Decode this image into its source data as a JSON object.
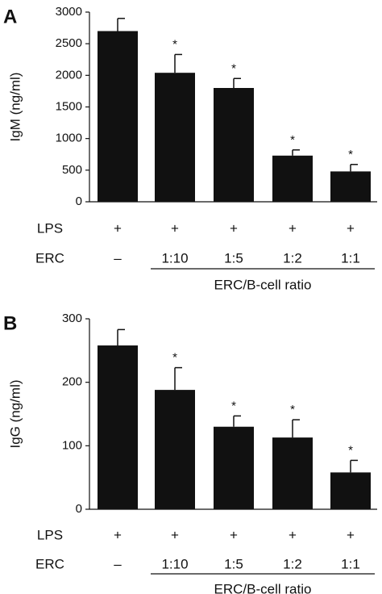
{
  "chart_data": [
    {
      "type": "bar",
      "panel_label": "A",
      "ylabel": "IgM (ng/ml)",
      "ylim": [
        0,
        3000
      ],
      "yticks": [
        "0",
        "500",
        "1000",
        "1500",
        "2000",
        "2500",
        "3000"
      ],
      "ytick_values": [
        0,
        500,
        1000,
        1500,
        2000,
        2500,
        3000
      ],
      "values": [
        2700,
        2040,
        1800,
        730,
        480
      ],
      "errors": [
        200,
        290,
        150,
        90,
        110
      ],
      "significance": [
        "",
        "*",
        "*",
        "*",
        "*"
      ],
      "color": "#111111",
      "rows": [
        {
          "label": "LPS",
          "values": [
            "+",
            "+",
            "+",
            "+",
            "+"
          ]
        },
        {
          "label": "ERC",
          "values": [
            "–",
            "1:10",
            "1:5",
            "1:2",
            "1:1"
          ]
        }
      ],
      "bracket_label": "ERC/B-cell ratio"
    },
    {
      "type": "bar",
      "panel_label": "B",
      "ylabel": "IgG (ng/ml)",
      "ylim": [
        0,
        300
      ],
      "yticks": [
        "0",
        "100",
        "200",
        "300"
      ],
      "ytick_values": [
        0,
        100,
        200,
        300
      ],
      "values": [
        258,
        188,
        130,
        113,
        58
      ],
      "errors": [
        25,
        35,
        17,
        28,
        19
      ],
      "significance": [
        "",
        "*",
        "*",
        "*",
        "*"
      ],
      "color": "#111111",
      "rows": [
        {
          "label": "LPS",
          "values": [
            "+",
            "+",
            "+",
            "+",
            "+"
          ]
        },
        {
          "label": "ERC",
          "values": [
            "–",
            "1:10",
            "1:5",
            "1:2",
            "1:1"
          ]
        }
      ],
      "bracket_label": "ERC/B-cell ratio"
    }
  ]
}
